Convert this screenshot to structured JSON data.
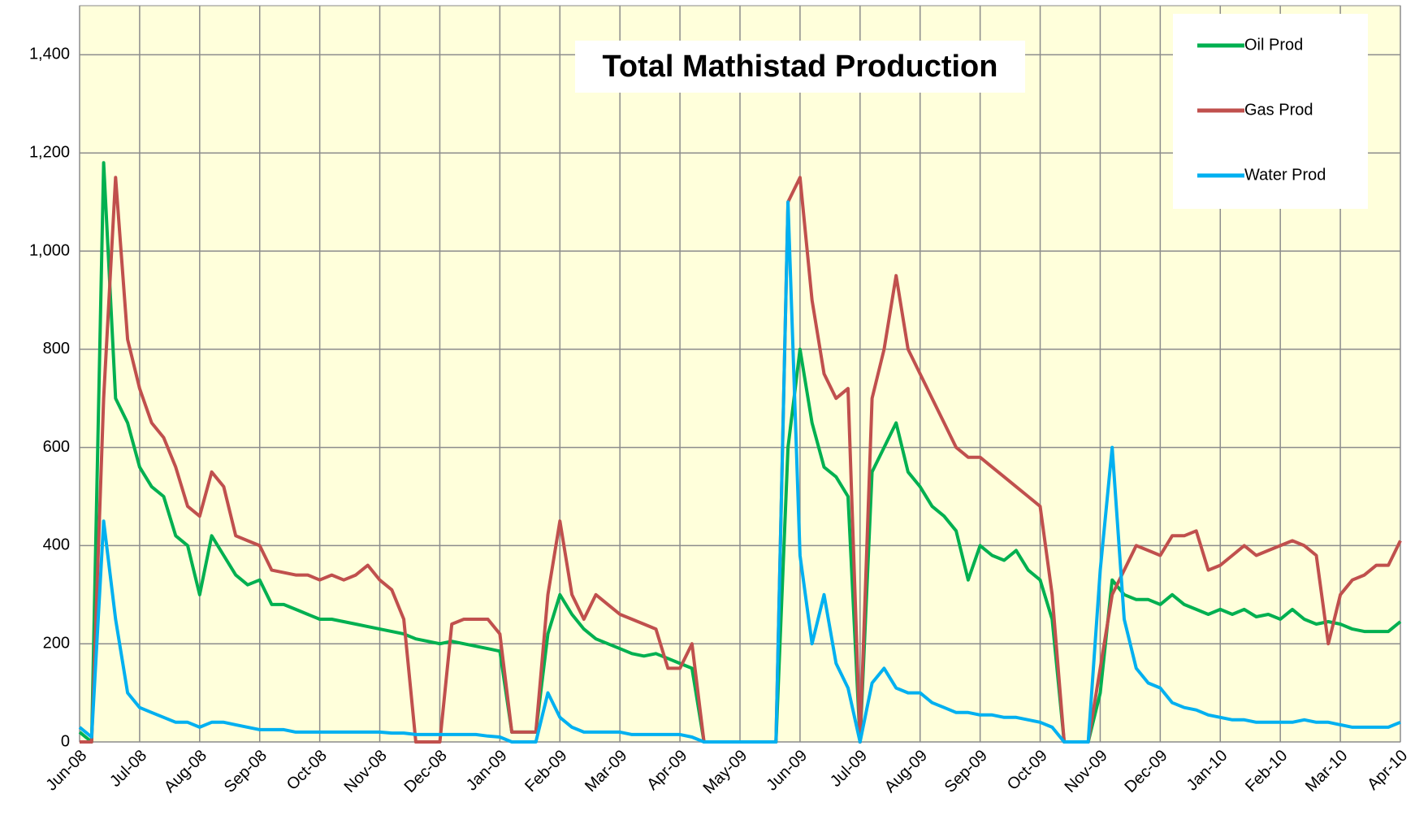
{
  "chart_data": {
    "type": "line",
    "title": "Total Mathistad Production",
    "x": [
      0,
      0.2,
      0.4,
      0.6,
      0.8,
      1,
      1.2,
      1.4,
      1.6,
      1.8,
      2,
      2.2,
      2.4,
      2.6,
      2.8,
      3,
      3.2,
      3.4,
      3.6,
      3.8,
      4,
      4.2,
      4.4,
      4.6,
      4.8,
      5,
      5.2,
      5.4,
      5.6,
      5.8,
      6,
      6.2,
      6.4,
      6.6,
      6.8,
      7,
      7.2,
      7.4,
      7.6,
      7.8,
      8,
      8.2,
      8.4,
      8.6,
      8.8,
      9,
      9.2,
      9.4,
      9.6,
      9.8,
      10,
      10.2,
      10.4,
      10.6,
      10.8,
      11,
      11.2,
      11.4,
      11.6,
      11.8,
      12,
      12.2,
      12.4,
      12.6,
      12.8,
      13,
      13.2,
      13.4,
      13.6,
      13.8,
      14,
      14.2,
      14.4,
      14.6,
      14.8,
      15,
      15.2,
      15.4,
      15.6,
      15.8,
      16,
      16.2,
      16.4,
      16.6,
      16.8,
      17,
      17.2,
      17.4,
      17.6,
      17.8,
      18,
      18.2,
      18.4,
      18.6,
      18.8,
      19,
      19.2,
      19.4,
      19.6,
      19.8,
      20,
      20.2,
      20.4,
      20.6,
      20.8,
      21,
      21.2,
      21.4,
      21.6,
      21.8,
      22
    ],
    "series": [
      {
        "name": "Oil Prod",
        "color": "#00b050",
        "values": [
          20,
          0,
          1180,
          700,
          650,
          560,
          520,
          500,
          420,
          400,
          300,
          420,
          380,
          340,
          320,
          330,
          280,
          280,
          270,
          260,
          250,
          250,
          245,
          240,
          235,
          230,
          225,
          220,
          210,
          205,
          200,
          205,
          200,
          195,
          190,
          185,
          20,
          20,
          20,
          220,
          300,
          260,
          230,
          210,
          200,
          190,
          180,
          175,
          180,
          170,
          160,
          150,
          0,
          0,
          0,
          0,
          0,
          0,
          0,
          600,
          800,
          650,
          560,
          540,
          500,
          0,
          550,
          600,
          650,
          550,
          520,
          480,
          460,
          430,
          330,
          400,
          380,
          370,
          390,
          350,
          330,
          250,
          0,
          0,
          0,
          100,
          330,
          300,
          290,
          290,
          280,
          300,
          280,
          270,
          260,
          270,
          260,
          270,
          255,
          260,
          250,
          270,
          250,
          240,
          245,
          240,
          230,
          225,
          225,
          225,
          245
        ]
      },
      {
        "name": "Gas Prod",
        "color": "#c0504d",
        "values": [
          0,
          0,
          700,
          1150,
          820,
          720,
          650,
          620,
          560,
          480,
          460,
          550,
          520,
          420,
          410,
          400,
          350,
          345,
          340,
          340,
          330,
          340,
          330,
          340,
          360,
          330,
          310,
          250,
          0,
          0,
          0,
          240,
          250,
          250,
          250,
          220,
          20,
          20,
          20,
          300,
          450,
          300,
          250,
          300,
          280,
          260,
          250,
          240,
          230,
          150,
          150,
          200,
          0,
          0,
          0,
          0,
          0,
          0,
          0,
          1100,
          1150,
          900,
          750,
          700,
          720,
          0,
          700,
          800,
          950,
          800,
          750,
          700,
          650,
          600,
          580,
          580,
          560,
          540,
          520,
          500,
          480,
          300,
          0,
          0,
          0,
          150,
          300,
          350,
          400,
          390,
          380,
          420,
          420,
          430,
          350,
          360,
          380,
          400,
          380,
          390,
          400,
          410,
          400,
          380,
          200,
          300,
          330,
          340,
          360,
          360,
          410
        ]
      },
      {
        "name": "Water Prod",
        "color": "#00b0f0",
        "values": [
          30,
          10,
          450,
          250,
          100,
          70,
          60,
          50,
          40,
          40,
          30,
          40,
          40,
          35,
          30,
          25,
          25,
          25,
          20,
          20,
          20,
          20,
          20,
          20,
          20,
          20,
          18,
          18,
          15,
          15,
          15,
          15,
          15,
          15,
          12,
          10,
          0,
          0,
          0,
          100,
          50,
          30,
          20,
          20,
          20,
          20,
          15,
          15,
          15,
          15,
          15,
          10,
          0,
          0,
          0,
          0,
          0,
          0,
          0,
          1100,
          380,
          200,
          300,
          160,
          110,
          0,
          120,
          150,
          110,
          100,
          100,
          80,
          70,
          60,
          60,
          55,
          55,
          50,
          50,
          45,
          40,
          30,
          0,
          0,
          0,
          350,
          600,
          250,
          150,
          120,
          110,
          80,
          70,
          65,
          55,
          50,
          45,
          45,
          40,
          40,
          40,
          40,
          45,
          40,
          40,
          35,
          30,
          30,
          30,
          30,
          40
        ]
      }
    ],
    "xlim": [
      0,
      22
    ],
    "xticks": [
      {
        "value": 0,
        "label": "Jun-08"
      },
      {
        "value": 1,
        "label": "Jul-08"
      },
      {
        "value": 2,
        "label": "Aug-08"
      },
      {
        "value": 3,
        "label": "Sep-08"
      },
      {
        "value": 4,
        "label": "Oct-08"
      },
      {
        "value": 5,
        "label": "Nov-08"
      },
      {
        "value": 6,
        "label": "Dec-08"
      },
      {
        "value": 7,
        "label": "Jan-09"
      },
      {
        "value": 8,
        "label": "Feb-09"
      },
      {
        "value": 9,
        "label": "Mar-09"
      },
      {
        "value": 10,
        "label": "Apr-09"
      },
      {
        "value": 11,
        "label": "May-09"
      },
      {
        "value": 12,
        "label": "Jun-09"
      },
      {
        "value": 13,
        "label": "Jul-09"
      },
      {
        "value": 14,
        "label": "Aug-09"
      },
      {
        "value": 15,
        "label": "Sep-09"
      },
      {
        "value": 16,
        "label": "Oct-09"
      },
      {
        "value": 17,
        "label": "Nov-09"
      },
      {
        "value": 18,
        "label": "Dec-09"
      },
      {
        "value": 19,
        "label": "Jan-10"
      },
      {
        "value": 20,
        "label": "Feb-10"
      },
      {
        "value": 21,
        "label": "Mar-10"
      },
      {
        "value": 22,
        "label": "Apr-10"
      }
    ],
    "ylim": [
      0,
      1500
    ],
    "yticks": [
      0,
      200,
      400,
      600,
      800,
      {
        "value": 1000,
        "label": "1,000"
      },
      {
        "value": 1200,
        "label": "1,200"
      },
      {
        "value": 1400,
        "label": "1,400"
      }
    ],
    "grid": true,
    "legend": "upper right"
  }
}
